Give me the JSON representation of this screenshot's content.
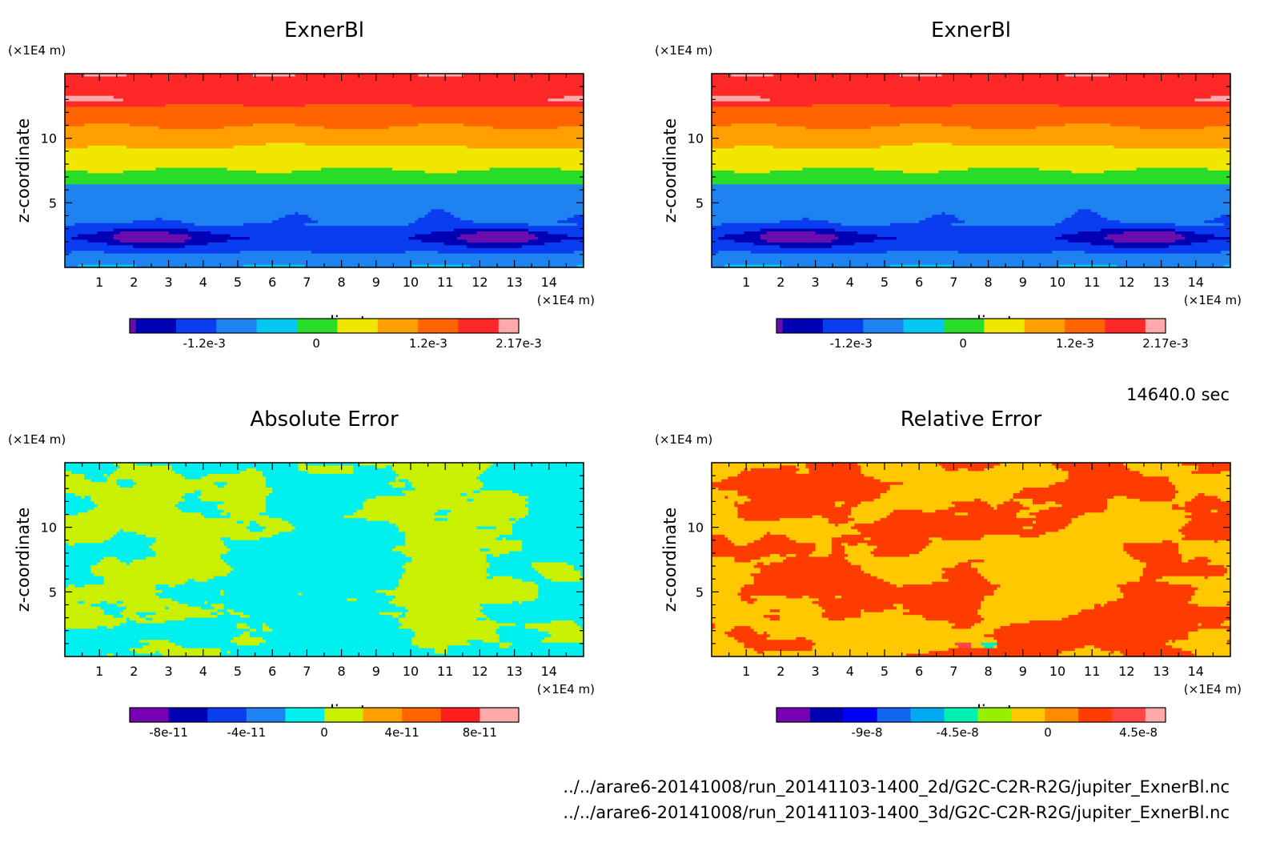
{
  "page": {
    "time_label": "14640.0 sec",
    "files": [
      "../../arare6-20141008/run_20141103-1400_2d/G2C-C2R-R2G/jupiter_ExnerBl.nc",
      "../../arare6-20141008/run_20141103-1400_3d/G2C-C2R-R2G/jupiter_ExnerBl.nc"
    ]
  },
  "chart_data": [
    {
      "type": "heatmap",
      "title": "ExnerBl",
      "xlabel": "x-coordinate",
      "ylabel": "z-coordinate",
      "x_unit": "(×1E4 m)",
      "y_unit": "(×1E4 m)",
      "xlim": [
        0,
        15
      ],
      "ylim": [
        0,
        15
      ],
      "xticks": [
        "1",
        "2",
        "3",
        "4",
        "5",
        "6",
        "7",
        "8",
        "9",
        "10",
        "11",
        "12",
        "13",
        "14"
      ],
      "yticks": [
        "5",
        "10"
      ],
      "colorbar": {
        "colors": [
          "#6a0dad",
          "#0000b4",
          "#0a3cf0",
          "#1e82f0",
          "#00c8f0",
          "#28dc28",
          "#f0e600",
          "#ffa000",
          "#ff6400",
          "#ff2828",
          "#ffaaaa"
        ],
        "widths": [
          0.3,
          2,
          2,
          2,
          2,
          2,
          2,
          2,
          2,
          2,
          1
        ],
        "labels": [
          {
            "text": "-1.2e-3",
            "at": -0.0012
          },
          {
            "text": "0",
            "at": 0
          },
          {
            "text": "1.2e-3",
            "at": 0.0012
          },
          {
            "text": "2.17e-3",
            "at": 0.00217
          }
        ],
        "range": [
          -0.002,
          0.00217
        ]
      },
      "pattern": "exner"
    },
    {
      "type": "heatmap",
      "title": "ExnerBl",
      "xlabel": "x-coordinate",
      "ylabel": "z-coordinate",
      "x_unit": "(×1E4 m)",
      "y_unit": "(×1E4 m)",
      "xlim": [
        0,
        15
      ],
      "ylim": [
        0,
        15
      ],
      "xticks": [
        "1",
        "2",
        "3",
        "4",
        "5",
        "6",
        "7",
        "8",
        "9",
        "10",
        "11",
        "12",
        "13",
        "14"
      ],
      "yticks": [
        "5",
        "10"
      ],
      "colorbar": {
        "colors": [
          "#6a0dad",
          "#0000b4",
          "#0a3cf0",
          "#1e82f0",
          "#00c8f0",
          "#28dc28",
          "#f0e600",
          "#ffa000",
          "#ff6400",
          "#ff2828",
          "#ffaaaa"
        ],
        "widths": [
          0.3,
          2,
          2,
          2,
          2,
          2,
          2,
          2,
          2,
          2,
          1
        ],
        "labels": [
          {
            "text": "-1.2e-3",
            "at": -0.0012
          },
          {
            "text": "0",
            "at": 0
          },
          {
            "text": "1.2e-3",
            "at": 0.0012
          },
          {
            "text": "2.17e-3",
            "at": 0.00217
          }
        ],
        "range": [
          -0.002,
          0.00217
        ]
      },
      "pattern": "exner"
    },
    {
      "type": "heatmap",
      "title": "Absolute Error",
      "xlabel": "x-coordinate",
      "ylabel": "z-coordinate",
      "x_unit": "(×1E4 m)",
      "y_unit": "(×1E4 m)",
      "xlim": [
        0,
        15
      ],
      "ylim": [
        0,
        15
      ],
      "xticks": [
        "1",
        "2",
        "3",
        "4",
        "5",
        "6",
        "7",
        "8",
        "9",
        "10",
        "11",
        "12",
        "13",
        "14"
      ],
      "yticks": [
        "5",
        "10"
      ],
      "colorbar": {
        "colors": [
          "#7800b4",
          "#0000b4",
          "#0a3cf0",
          "#1e82f0",
          "#00f0f0",
          "#c8f000",
          "#ffa000",
          "#ff6400",
          "#ff1e1e",
          "#ffaaaa"
        ],
        "widths": [
          1,
          1,
          1,
          1,
          1,
          1,
          1,
          1,
          1,
          1
        ],
        "labels": [
          {
            "text": "-8e-11",
            "at": -8e-11
          },
          {
            "text": "-4e-11",
            "at": -4e-11
          },
          {
            "text": "0",
            "at": 0
          },
          {
            "text": "4e-11",
            "at": 4e-11
          },
          {
            "text": "8e-11",
            "at": 8e-11
          }
        ],
        "range": [
          -1e-10,
          1e-10
        ]
      },
      "pattern": "abs"
    },
    {
      "type": "heatmap",
      "title": "Relative Error",
      "xlabel": "x-coordinate",
      "ylabel": "z-coordinate",
      "x_unit": "(×1E4 m)",
      "y_unit": "(×1E4 m)",
      "xlim": [
        0,
        15
      ],
      "ylim": [
        0,
        15
      ],
      "xticks": [
        "1",
        "2",
        "3",
        "4",
        "5",
        "6",
        "7",
        "8",
        "9",
        "10",
        "11",
        "12",
        "13",
        "14"
      ],
      "yticks": [
        "5",
        "10"
      ],
      "colorbar": {
        "colors": [
          "#7800b4",
          "#0000b4",
          "#0000ff",
          "#1464f0",
          "#00aaf0",
          "#00f0b4",
          "#96f000",
          "#ffc800",
          "#ff8c00",
          "#ff3c00",
          "#ff4646",
          "#ffaaaa"
        ],
        "widths": [
          1,
          1,
          1,
          1,
          1,
          1,
          1,
          1,
          1,
          1,
          1,
          0.6
        ],
        "labels": [
          {
            "text": "-9e-8",
            "at": -9e-08
          },
          {
            "text": "-4.5e-8",
            "at": -4.5e-08
          },
          {
            "text": "0",
            "at": 0
          },
          {
            "text": "4.5e-8",
            "at": 4.5e-08
          }
        ],
        "range": [
          -1.35e-07,
          5.85e-08
        ]
      },
      "pattern": "rel"
    }
  ]
}
